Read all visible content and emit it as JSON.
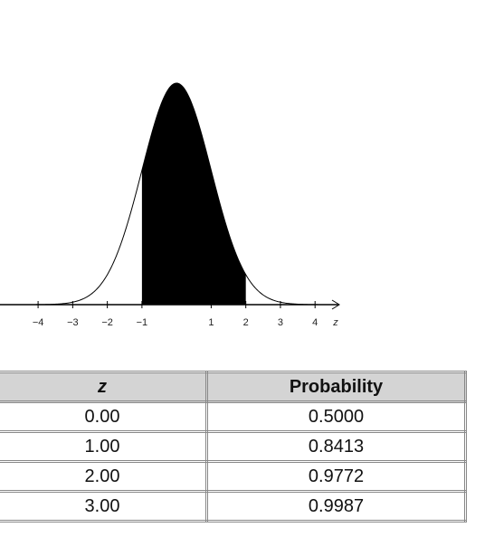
{
  "chart_data": {
    "type": "normal-area",
    "x_label": "z",
    "xlim": [
      -5.1,
      4.7
    ],
    "xticks": [
      {
        "value": -4,
        "label": "−4"
      },
      {
        "value": -3,
        "label": "−3"
      },
      {
        "value": -2,
        "label": "−2"
      },
      {
        "value": -1,
        "label": "−1"
      },
      1,
      2,
      3,
      4
    ],
    "shaded_interval": [
      -1,
      2
    ]
  },
  "table": {
    "header": [
      "z",
      "Probability"
    ],
    "rows": [
      [
        "0.00",
        "0.5000"
      ],
      [
        "1.00",
        "0.8413"
      ],
      [
        "2.00",
        "0.9772"
      ],
      [
        "3.00",
        "0.9987"
      ]
    ]
  }
}
